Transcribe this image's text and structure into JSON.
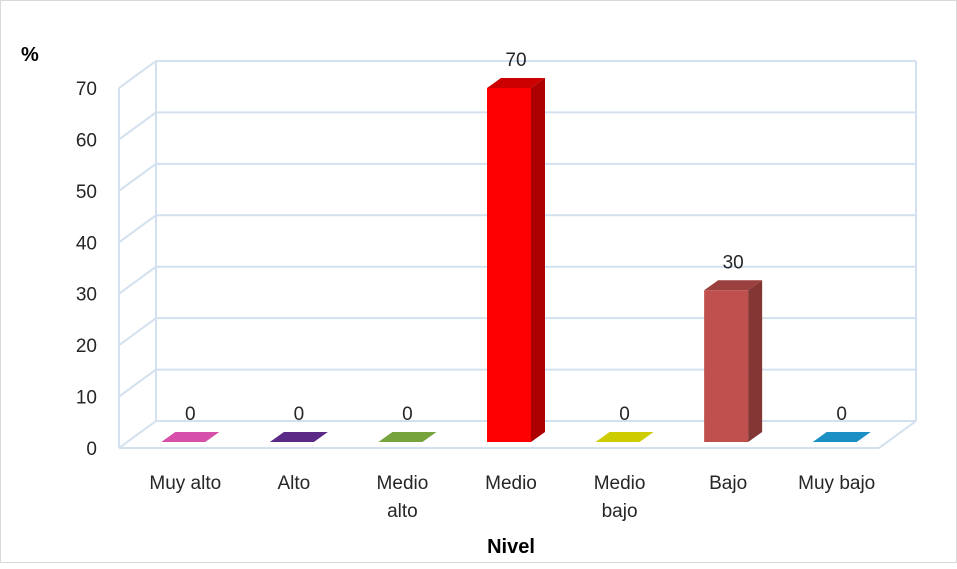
{
  "chart_data": {
    "type": "bar",
    "title": "",
    "ylabel": "%",
    "xlabel": "Nivel",
    "ylim": [
      0,
      70
    ],
    "yticks": [
      0,
      10,
      20,
      30,
      40,
      50,
      60,
      70
    ],
    "grid": true,
    "legend": "none",
    "categories": [
      [
        "Muy alto"
      ],
      [
        "Alto"
      ],
      [
        "Medio",
        "alto"
      ],
      [
        "Medio"
      ],
      [
        "Medio",
        "bajo"
      ],
      [
        "Bajo"
      ],
      [
        "Muy bajo"
      ]
    ],
    "values": [
      0,
      0,
      0,
      70,
      0,
      30,
      0
    ],
    "data_labels": [
      "0",
      "0",
      "0",
      "70",
      "0",
      "30",
      "0"
    ],
    "colors": [
      "#d64fa9",
      "#5b2a86",
      "#76a33b",
      "#ff0000",
      "#cccc00",
      "#c0504d",
      "#1c8fc4"
    ],
    "style": "3d-column"
  }
}
